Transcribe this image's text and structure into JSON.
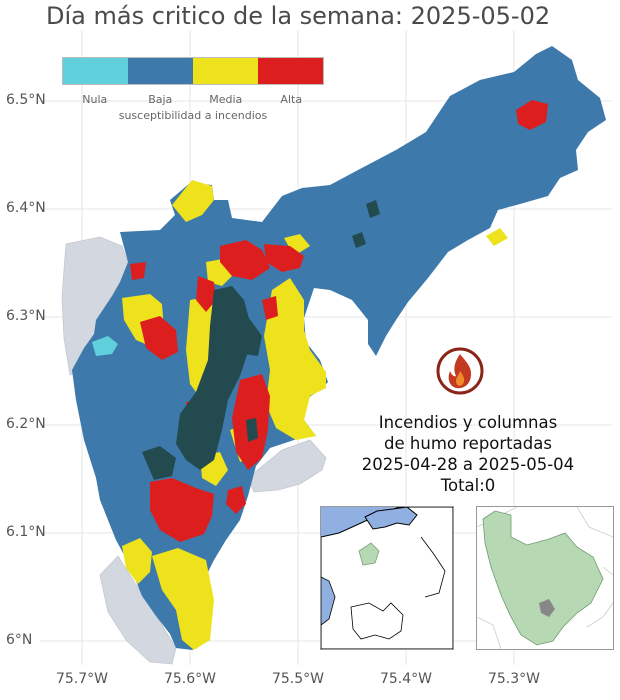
{
  "title": "Día más critico de la semana: 2025-05-02",
  "axes": {
    "y_ticks": [
      "6.5°N",
      "6.4°N",
      "6.3°N",
      "6.2°N",
      "6.1°N",
      "6°N"
    ],
    "x_ticks": [
      "75.7°W",
      "75.6°W",
      "75.5°W",
      "75.4°W",
      "75.3°W"
    ]
  },
  "legend": {
    "title": "susceptibilidad a incendios",
    "items": [
      {
        "label": "Nula",
        "color": "#5fd0dc"
      },
      {
        "label": "Baja",
        "color": "#3d7aab"
      },
      {
        "label": "Media",
        "color": "#ede21c"
      },
      {
        "label": "Alta",
        "color": "#dc1e1e"
      }
    ]
  },
  "fire_info": {
    "line1": "Incendios y columnas",
    "line2": "de humo reportadas",
    "line3": "2025-04-28 a 2025-05-04",
    "line4": "Total:0"
  },
  "colors": {
    "background_region": "#d3d7df",
    "urban": "#234a4e",
    "sea": "#8fb0e0",
    "highlight_region": "#b6d9b4",
    "fire_icon": "#8b2418"
  },
  "icons": {
    "fire": "fire-icon"
  }
}
